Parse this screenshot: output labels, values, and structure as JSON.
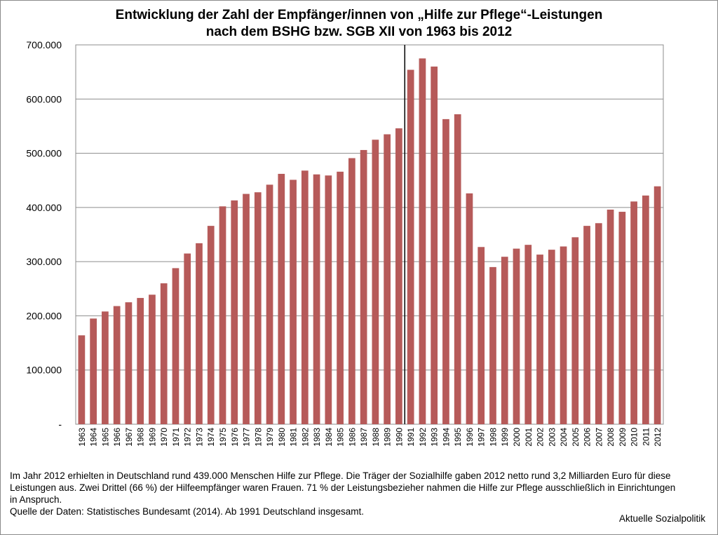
{
  "title_line1": "Entwicklung der Zahl der Empfänger/innen von „Hilfe zur Pflege“-Leistungen",
  "title_line2": "nach dem BSHG bzw. SGB XII von 1963 bis 2012",
  "caption_text": "Im Jahr 2012 erhielten in Deutschland rund 439.000 Menschen Hilfe zur Pflege. Die Träger der Sozialhilfe gaben 2012 netto rund 3,2 Milliarden Euro für diese Leistungen aus. Zwei Drittel (66 %) der Hilfeempfänger waren Frauen. 71 % der Leistungsbezieher nahmen die Hilfe zur Pflege ausschließlich in Einrichtungen in Anspruch.",
  "source_text": "Quelle der Daten: Statistisches Bundesamt (2014). Ab 1991 Deutschland insgesamt.",
  "credit": "Aktuelle Sozialpolitik",
  "chart_data": {
    "type": "bar",
    "title": "Entwicklung der Zahl der Empfänger/innen von „Hilfe zur Pflege“-Leistungen nach dem BSHG bzw. SGB XII von 1963 bis 2012",
    "categories": [
      "1963",
      "1964",
      "1965",
      "1966",
      "1967",
      "1968",
      "1969",
      "1970",
      "1971",
      "1972",
      "1973",
      "1974",
      "1975",
      "1976",
      "1977",
      "1978",
      "1979",
      "1980",
      "1981",
      "1982",
      "1983",
      "1984",
      "1985",
      "1986",
      "1987",
      "1988",
      "1989",
      "1990",
      "1991",
      "1992",
      "1993",
      "1994",
      "1995",
      "1996",
      "1997",
      "1998",
      "1999",
      "2000",
      "2001",
      "2002",
      "2003",
      "2004",
      "2005",
      "2006",
      "2007",
      "2008",
      "2009",
      "2010",
      "2011",
      "2012"
    ],
    "values": [
      164000,
      195000,
      208000,
      218000,
      225000,
      233000,
      239000,
      260000,
      288000,
      315000,
      334000,
      366000,
      402000,
      413000,
      425000,
      428000,
      442000,
      462000,
      451000,
      468000,
      461000,
      459000,
      466000,
      491000,
      506000,
      525000,
      535000,
      546000,
      654000,
      675000,
      660000,
      563000,
      572000,
      426000,
      327000,
      290000,
      309000,
      324000,
      331000,
      313000,
      322000,
      328000,
      345000,
      366000,
      371000,
      396000,
      392000,
      411000,
      422000,
      439000
    ],
    "ylim": [
      0,
      700000
    ],
    "yticks": [
      0,
      100000,
      200000,
      300000,
      400000,
      500000,
      600000,
      700000
    ],
    "ytick_labels": [
      "-",
      "100.000",
      "200.000",
      "300.000",
      "400.000",
      "500.000",
      "600.000",
      "700.000"
    ],
    "bar_color": "#b65a59",
    "grid": true,
    "divider_after": "1990"
  }
}
